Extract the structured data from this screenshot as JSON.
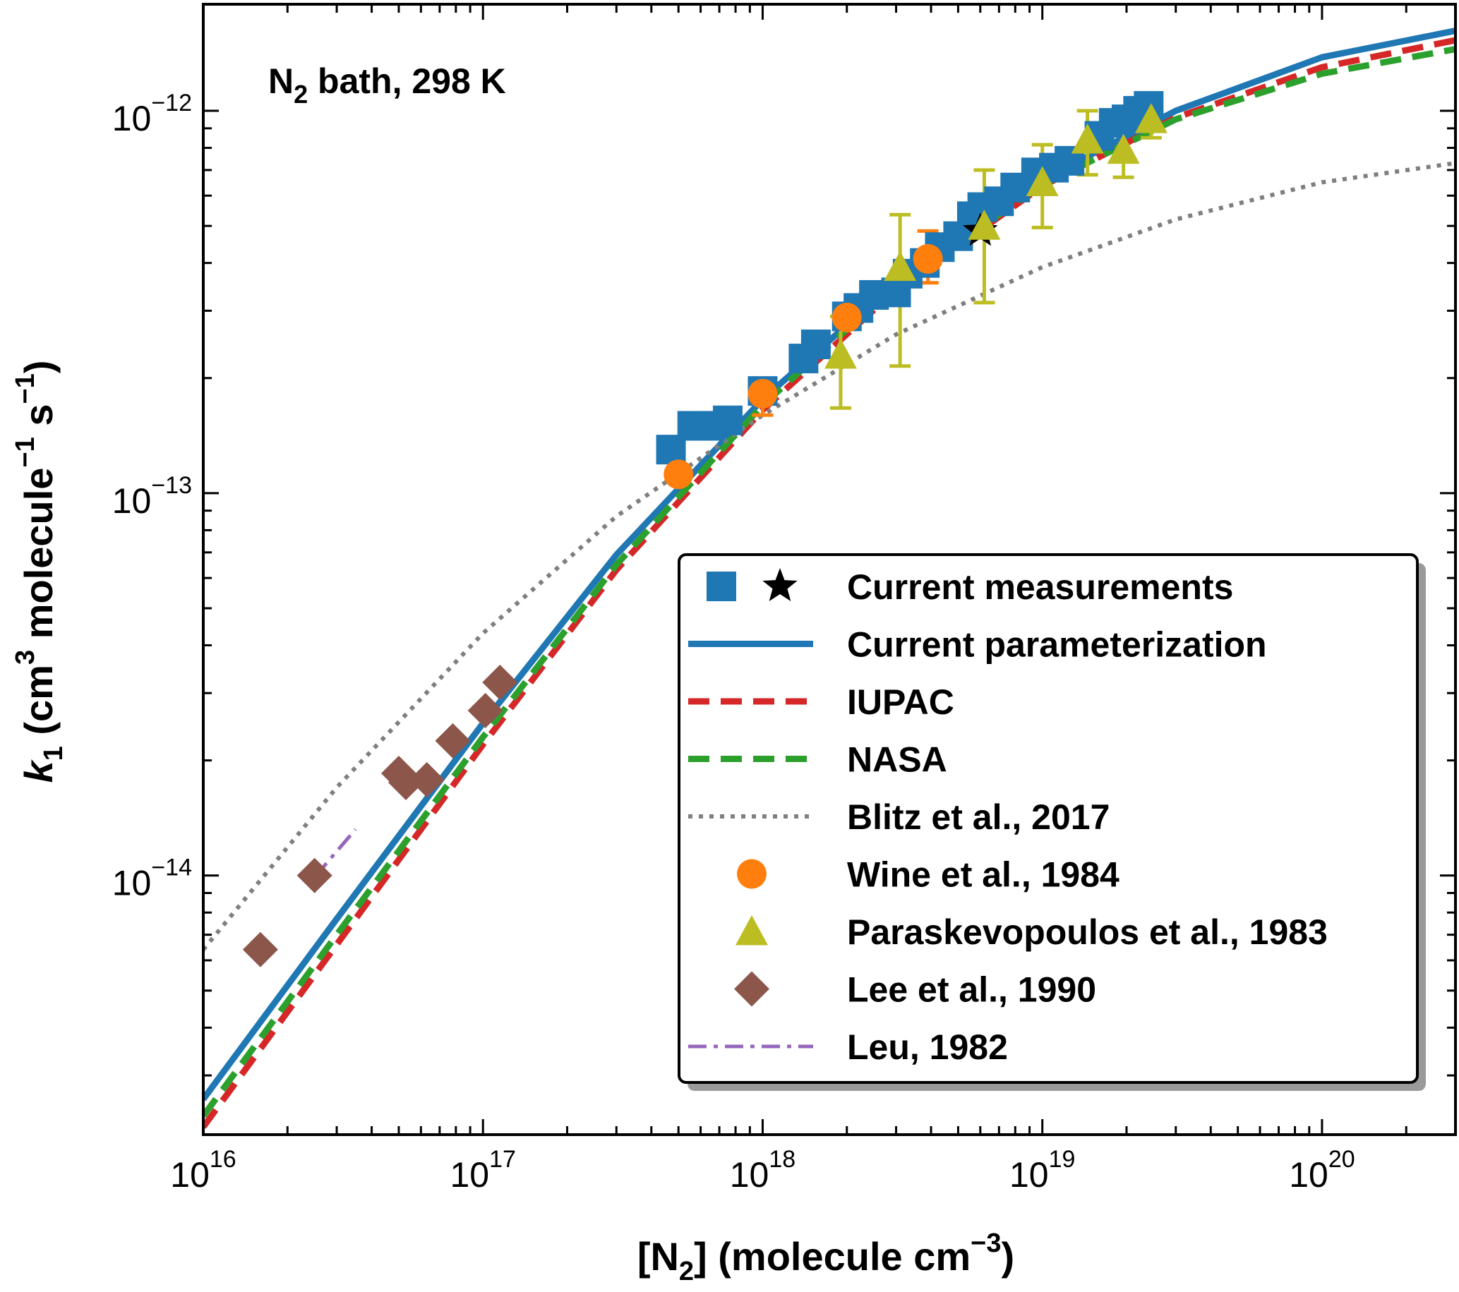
{
  "chart_data": {
    "type": "scatter",
    "title": "",
    "annotation": {
      "main": "N",
      "sub": "2",
      "rest": " bath, 298 K"
    },
    "xlabel": {
      "pre": "[N",
      "sub": "2",
      "mid": "] (molecule cm",
      "sup": "−3",
      "post": ")"
    },
    "ylabel": {
      "k": "k",
      "ksub": "1",
      "a": " (cm",
      "asup": "3",
      "b": " molecule",
      "bsup": "−1",
      "c": " s",
      "csup": "−1",
      "d": ")"
    },
    "x_scale": "log",
    "y_scale": "log",
    "xlim": [
      1e+16,
      3e+20
    ],
    "ylim": [
      2.1e-15,
      1.9e-12
    ],
    "x_ticks": [
      {
        "base": "10",
        "exp": "16",
        "value": 1e+16
      },
      {
        "base": "10",
        "exp": "17",
        "value": 1e+17
      },
      {
        "base": "10",
        "exp": "18",
        "value": 1e+18
      },
      {
        "base": "10",
        "exp": "19",
        "value": 1e+19
      },
      {
        "base": "10",
        "exp": "20",
        "value": 1e+20
      }
    ],
    "y_ticks": [
      {
        "base": "10",
        "exp": "−14",
        "value": 1e-14
      },
      {
        "base": "10",
        "exp": "−13",
        "value": 1e-13
      },
      {
        "base": "10",
        "exp": "−12",
        "value": 1e-12
      }
    ],
    "grid": false,
    "legend_position": "lower-right",
    "series": [
      {
        "name": "Current measurements",
        "kind": "markers",
        "marker": "square",
        "color": "#1f77b4",
        "x": [
          4.7e+17,
          5.6e+17,
          6.5e+17,
          7.5e+17,
          1e+18,
          1.4e+18,
          1.55e+18,
          2e+18,
          2.2e+18,
          2.5e+18,
          3e+18,
          3.3e+18,
          3.8e+18,
          4.3e+18,
          5e+18,
          5.6e+18,
          6.1e+18,
          7e+18,
          8e+18,
          9.5e+18,
          1.1e+19,
          1.25e+19,
          1.6e+19,
          1.8e+19,
          2e+19,
          2.2e+19,
          2.4e+19
        ],
        "y": [
          1.3e-13,
          1.5e-13,
          1.5e-13,
          1.55e-13,
          1.85e-13,
          2.25e-13,
          2.45e-13,
          2.9e-13,
          3.05e-13,
          3.3e-13,
          3.35e-13,
          3.75e-13,
          4e-13,
          4.4e-13,
          4.7e-13,
          5.3e-13,
          5.6e-13,
          5.8e-13,
          6.3e-13,
          6.9e-13,
          7.1e-13,
          7.4e-13,
          8.6e-13,
          9.3e-13,
          9.5e-13,
          1e-12,
          1.03e-12
        ]
      },
      {
        "name": "",
        "kind": "markers",
        "marker": "star",
        "color": "#000000",
        "x": [
          6e+18
        ],
        "y": [
          4.85e-13
        ]
      },
      {
        "name": "Current parameterization",
        "kind": "line",
        "dash": "solid",
        "color": "#1f77b4",
        "x": [
          1e+16,
          3e+16,
          1e+17,
          3e+17,
          1e+18,
          3e+18,
          1e+19,
          3e+19,
          1e+20,
          3e+20
        ],
        "y": [
          2.6e-15,
          7.7e-15,
          2.5e-14,
          6.9e-14,
          1.76e-13,
          3.57e-13,
          6.6e-13,
          1e-12,
          1.38e-12,
          1.62e-12
        ]
      },
      {
        "name": "IUPAC",
        "kind": "line",
        "dash": "dashed",
        "color": "#d62728",
        "x": [
          1e+16,
          3e+16,
          1e+17,
          3e+17,
          1e+18,
          3e+18,
          1e+19,
          3e+19,
          1e+20,
          3e+20
        ],
        "y": [
          2.2e-15,
          6.6e-15,
          2.2e-14,
          6.3e-14,
          1.65e-13,
          3.4e-13,
          6.35e-13,
          9.6e-13,
          1.3e-12,
          1.53e-12
        ]
      },
      {
        "name": "NASA",
        "kind": "line",
        "dash": "dashed",
        "color": "#2ca02c",
        "x": [
          1e+16,
          3e+16,
          1e+17,
          3e+17,
          1e+18,
          3e+18,
          1e+19,
          3e+19,
          1e+20,
          3e+20
        ],
        "y": [
          2.35e-15,
          7e-15,
          2.3e-14,
          6.5e-14,
          1.7e-13,
          3.5e-13,
          6.4e-13,
          9.5e-13,
          1.25e-12,
          1.45e-12
        ]
      },
      {
        "name": "Blitz et al., 2017",
        "kind": "line",
        "dash": "dotted",
        "color": "#7f7f7f",
        "x": [
          1e+16,
          3e+16,
          1e+17,
          3e+17,
          1e+18,
          3e+18,
          1e+19,
          3e+19,
          1e+20,
          3e+20
        ],
        "y": [
          6.4e-15,
          1.7e-14,
          4.3e-14,
          8.7e-14,
          1.6e-13,
          2.6e-13,
          3.9e-13,
          5.2e-13,
          6.5e-13,
          7.3e-13
        ]
      },
      {
        "name": "Wine et al., 1984",
        "kind": "markers",
        "marker": "circle",
        "color": "#ff7f0e",
        "x": [
          5e+17,
          1e+18,
          2e+18,
          3.9e+18
        ],
        "y": [
          1.12e-13,
          1.82e-13,
          2.88e-13,
          4.1e-13
        ],
        "err_lo": [
          1.08e-13,
          1.6e-13,
          2.7e-13,
          3.55e-13
        ],
        "err_hi": [
          1.16e-13,
          1.95e-13,
          3e-13,
          4.85e-13
        ]
      },
      {
        "name": "Paraskevopoulos et al., 1983",
        "kind": "markers",
        "marker": "triangle",
        "color": "#bcbd22",
        "x": [
          1.9e+18,
          3.1e+18,
          6.2e+18,
          1e+19,
          1.45e+19,
          1.95e+19,
          2.45e+19
        ],
        "y": [
          2.3e-13,
          3.9e-13,
          5e-13,
          6.5e-13,
          8.4e-13,
          7.9e-13,
          9.5e-13
        ],
        "err_lo": [
          1.67e-13,
          2.15e-13,
          3.15e-13,
          4.95e-13,
          6.8e-13,
          6.7e-13,
          8.5e-13
        ],
        "err_hi": [
          2.9e-13,
          5.35e-13,
          7e-13,
          8.15e-13,
          1e-12,
          9e-13,
          1.05e-12
        ]
      },
      {
        "name": "Lee et al., 1990",
        "kind": "markers",
        "marker": "diamond",
        "color": "#8c564b",
        "x": [
          1.6e+16,
          2.5e+16,
          5e+16,
          5.3e+16,
          6.3e+16,
          7.8e+16,
          1.02e+17,
          1.15e+17
        ],
        "y": [
          6.4e-15,
          1e-14,
          1.85e-14,
          1.75e-14,
          1.78e-14,
          2.25e-14,
          2.7e-14,
          3.2e-14
        ]
      },
      {
        "name": "Leu, 1982",
        "kind": "line",
        "dash": "dashdot",
        "color": "#9467bd",
        "x": [
          2.5e+16,
          3.5e+16
        ],
        "y": [
          9.9e-15,
          1.32e-14
        ]
      }
    ]
  }
}
